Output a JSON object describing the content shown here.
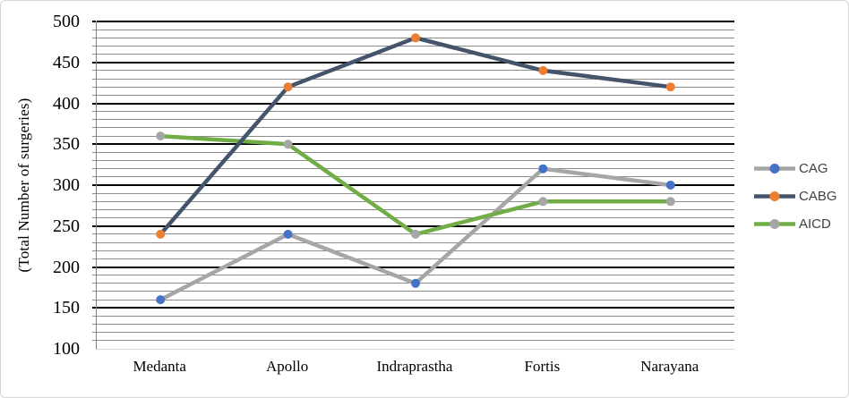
{
  "chart_data": {
    "type": "line",
    "title": "",
    "ylabel": "(Total Number of surgeries)",
    "xlabel": "",
    "categories": [
      "Medanta",
      "Apollo",
      "Indraprastha",
      "Fortis",
      "Narayana"
    ],
    "series": [
      {
        "name": "CAG",
        "values": [
          160,
          240,
          180,
          320,
          300
        ],
        "line_color": "#A6A6A6",
        "marker_color": "#4472C4"
      },
      {
        "name": "CABG",
        "values": [
          240,
          420,
          480,
          440,
          420
        ],
        "line_color": "#44546A",
        "marker_color": "#ED7D31"
      },
      {
        "name": "AICD",
        "values": [
          360,
          350,
          240,
          280,
          280
        ],
        "line_color": "#70AD47",
        "marker_color": "#A6A6A6"
      }
    ],
    "draw_order": [
      "CAG",
      "AICD",
      "CABG"
    ],
    "ylim": [
      100,
      500
    ],
    "y_tick_step": 50,
    "y_minor_step": 10,
    "legend_position": "right",
    "grid": {
      "major_color": "#000000",
      "minor_color": "#8C8C8C",
      "axis_color": "#808080",
      "baseline_color": "#D9D9D9"
    }
  }
}
